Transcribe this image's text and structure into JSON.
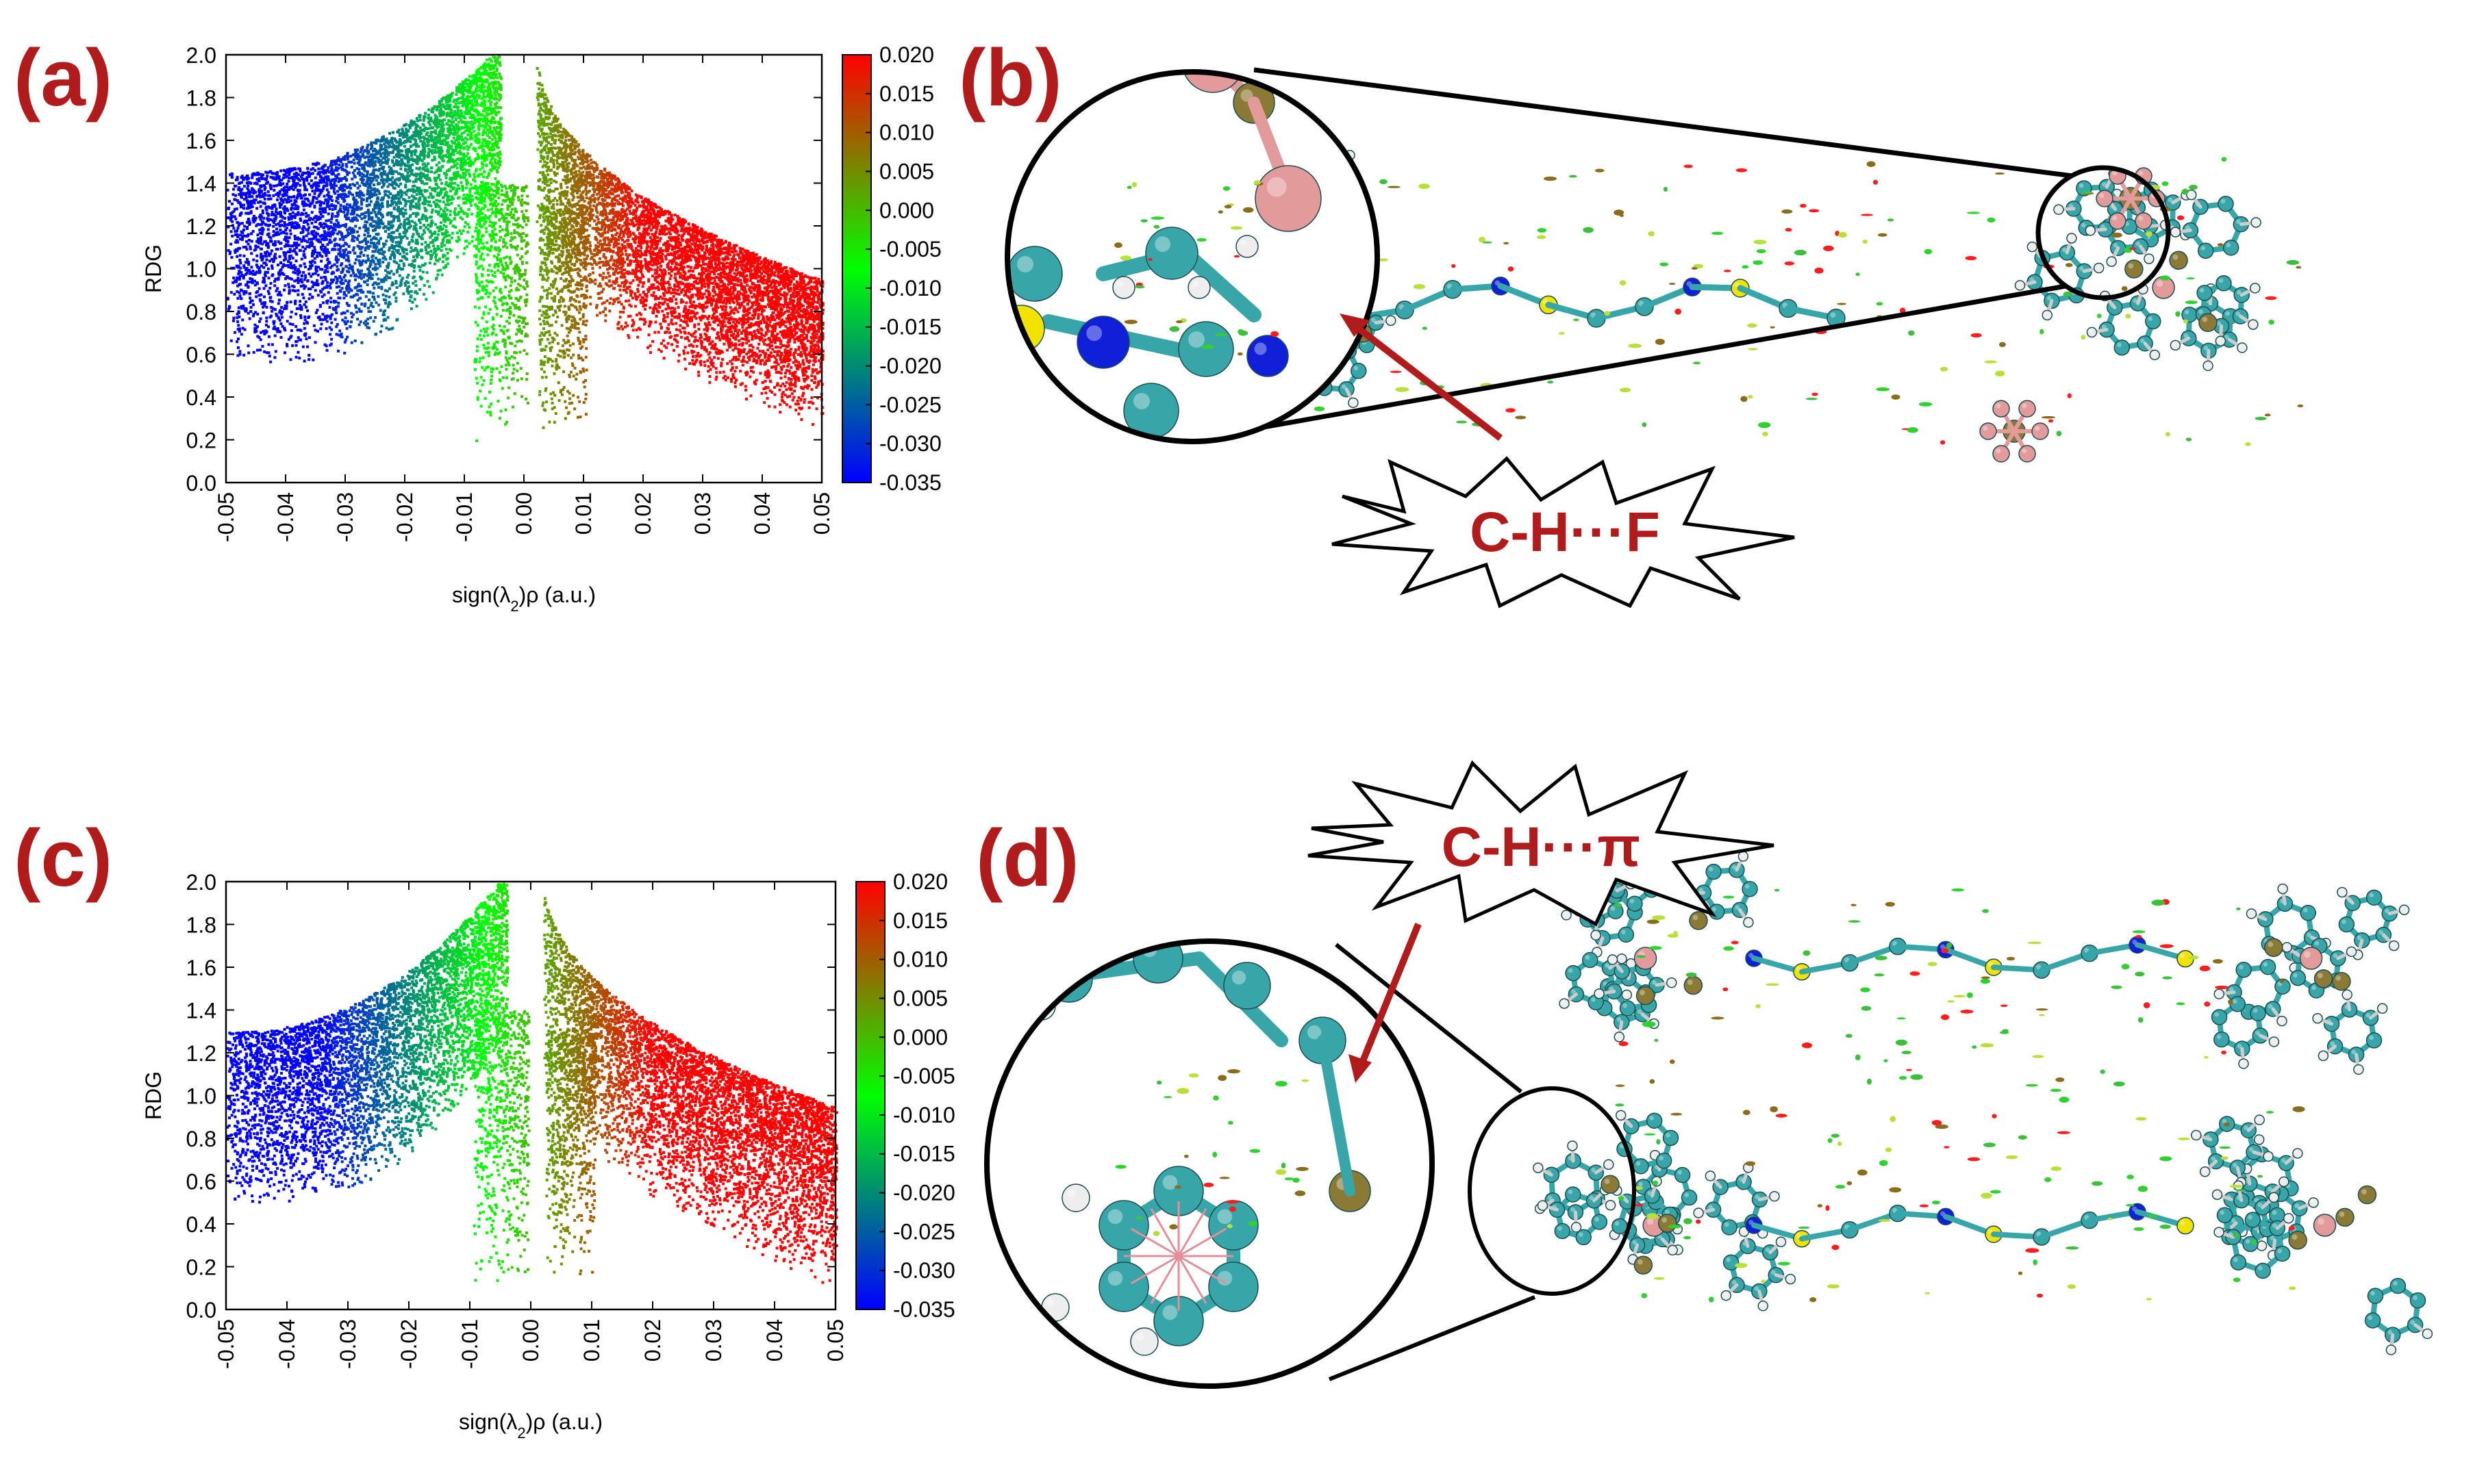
{
  "figure": {
    "panels": [
      {
        "id": "a",
        "label": "(a)"
      },
      {
        "id": "b",
        "label": "(b)",
        "callout": "C-H···F"
      },
      {
        "id": "c",
        "label": "(c)"
      },
      {
        "id": "d",
        "label": "(d)",
        "callout": "C-H···π"
      }
    ]
  },
  "colors": {
    "label_red": "#b01c1c",
    "arrow_red": "#b01c1c",
    "carbon": "#38a6a8",
    "hydrogen": "#eeeeee",
    "nitrogen": "#1020d8",
    "sulfur": "#f2e200",
    "fluorine": "#e39a9a",
    "phosphorus": "#8a7a36"
  },
  "chart_data": [
    {
      "id": "a",
      "type": "scatter",
      "title": "",
      "xlabel": "sign(λ2)ρ (a.u.)",
      "ylabel": "RDG",
      "xlim": [
        -0.05,
        0.05
      ],
      "ylim": [
        0.0,
        2.0
      ],
      "xticks": [
        "-0.05",
        "-0.04",
        "-0.03",
        "-0.02",
        "-0.01",
        "0.00",
        "0.01",
        "0.02",
        "0.03",
        "0.04",
        "0.05"
      ],
      "yticks": [
        "0.0",
        "0.2",
        "0.4",
        "0.6",
        "0.8",
        "1.0",
        "1.2",
        "1.4",
        "1.6",
        "1.8",
        "2.0"
      ],
      "colorbar": {
        "range": [
          -0.035,
          0.02
        ],
        "ticks": [
          "0.020",
          "0.015",
          "0.010",
          "0.005",
          "0.000",
          "-0.005",
          "-0.010",
          "-0.015",
          "-0.020",
          "-0.025",
          "-0.030",
          "-0.035"
        ],
        "stops": [
          "#0000ff",
          "#00ff00",
          "#ff0000"
        ]
      },
      "branches": {
        "negative": {
          "x_from": -0.05,
          "x_to": -0.004,
          "upper_rdg_at_x_min": 1.45,
          "lower_rdg_at_x_min": 0.55,
          "spike_x": -0.004,
          "spike_min_rdg": 0.2
        },
        "positive": {
          "x_from": 0.002,
          "x_to": 0.05,
          "upper_rdg_at_x_max": 0.95,
          "lower_rdg_at_x_max": 0.25,
          "spike_x": 0.004,
          "spike_min_rdg": 0.25
        }
      }
    },
    {
      "id": "c",
      "type": "scatter",
      "title": "",
      "xlabel": "sign(λ2)ρ (a.u.)",
      "ylabel": "RDG",
      "xlim": [
        -0.05,
        0.05
      ],
      "ylim": [
        0.0,
        2.0
      ],
      "xticks": [
        "-0.05",
        "-0.04",
        "-0.03",
        "-0.02",
        "-0.01",
        "0.00",
        "0.01",
        "0.02",
        "0.03",
        "0.04",
        "0.05"
      ],
      "yticks": [
        "0.0",
        "0.2",
        "0.4",
        "0.6",
        "0.8",
        "1.0",
        "1.2",
        "1.4",
        "1.6",
        "1.8",
        "2.0"
      ],
      "colorbar": {
        "range": [
          -0.035,
          0.02
        ],
        "ticks": [
          "0.020",
          "0.015",
          "0.010",
          "0.005",
          "0.000",
          "-0.005",
          "-0.010",
          "-0.015",
          "-0.020",
          "-0.025",
          "-0.030",
          "-0.035"
        ],
        "stops": [
          "#0000ff",
          "#00ff00",
          "#ff0000"
        ]
      },
      "branches": {
        "negative": {
          "x_from": -0.05,
          "x_to": -0.004,
          "upper_rdg_at_x_min": 1.3,
          "lower_rdg_at_x_min": 0.5,
          "spike_x": -0.005,
          "spike_min_rdg": 0.1
        },
        "positive": {
          "x_from": 0.002,
          "x_to": 0.05,
          "upper_rdg_at_x_max": 0.95,
          "lower_rdg_at_x_max": 0.1,
          "spike_x": 0.004,
          "spike_min_rdg": 0.15
        }
      }
    }
  ]
}
